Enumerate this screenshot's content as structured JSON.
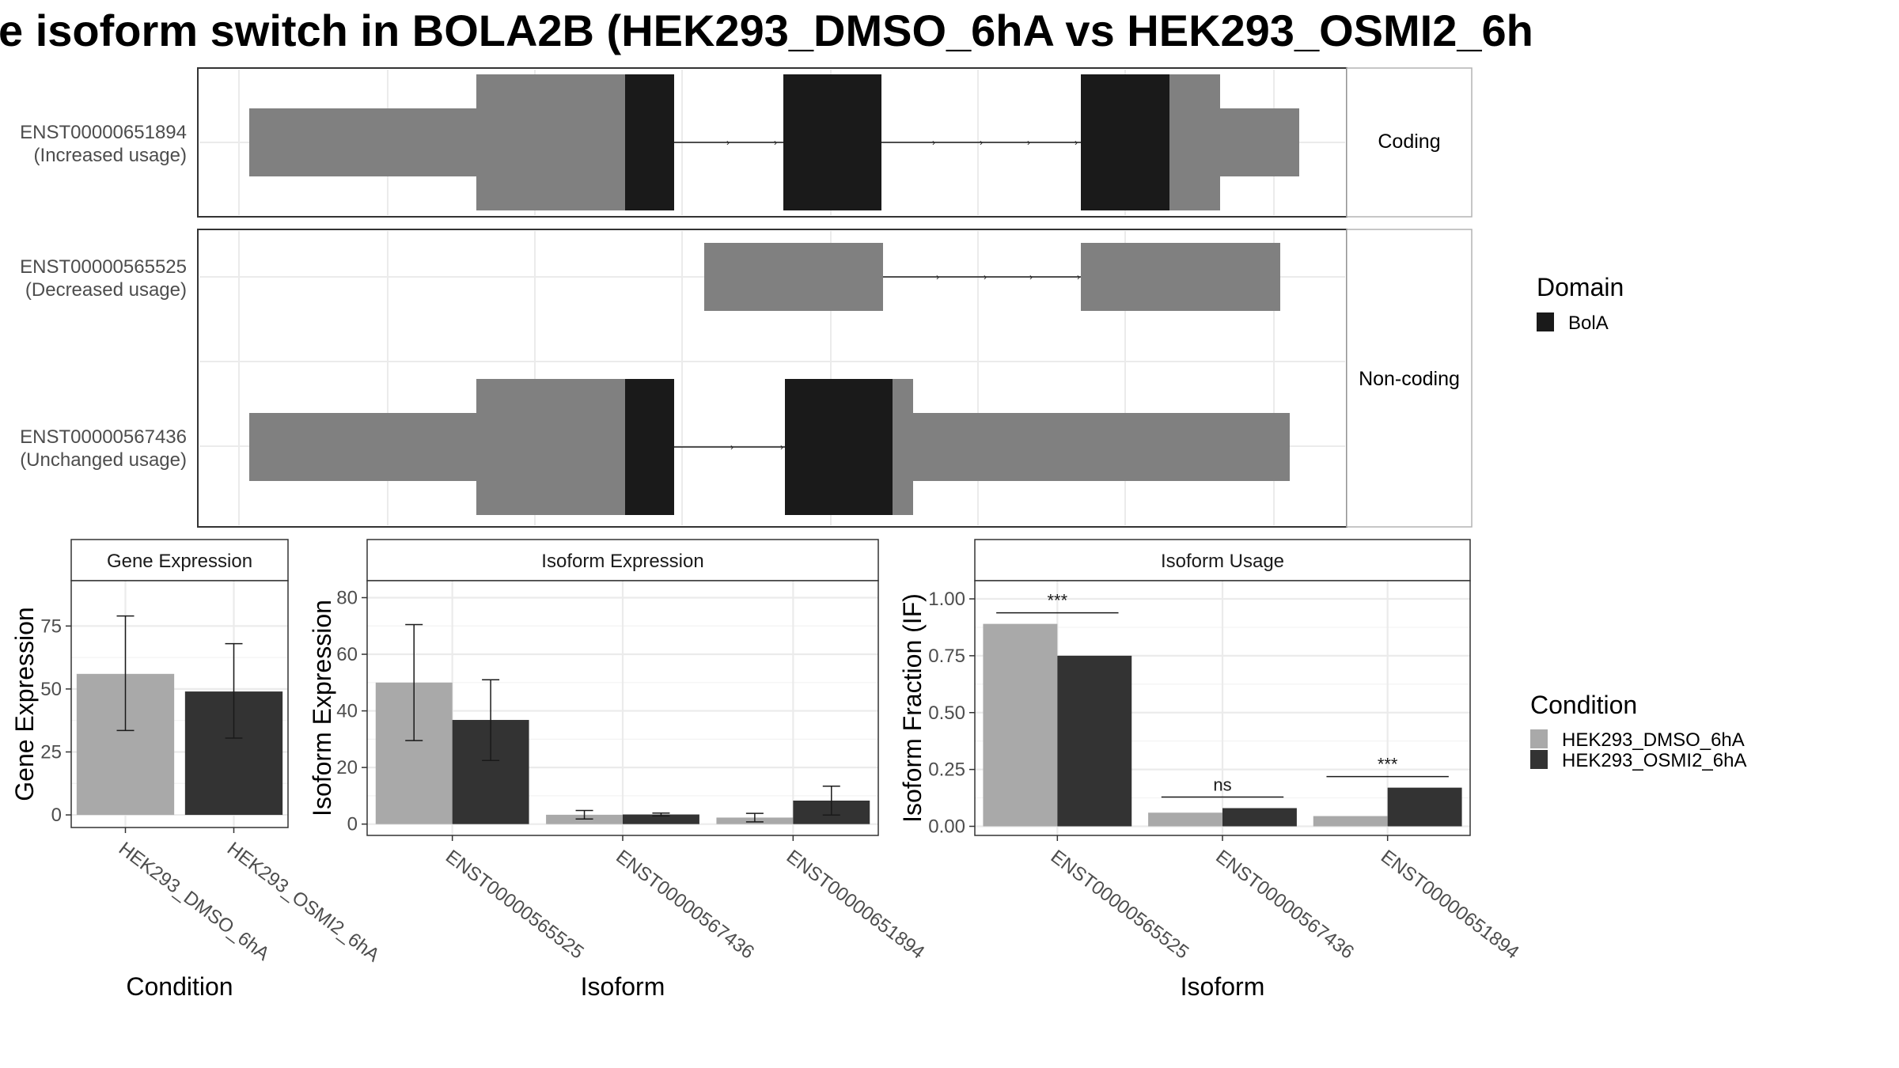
{
  "title": "e isoform switch in BOLA2B (HEK293_DMSO_6hA vs HEK293_OSMI2_6h",
  "colors": {
    "dmso": "#a9a9a9",
    "osmi": "#333333",
    "utr": "#808080",
    "domain": "#1a1a1a",
    "grid": "#ebebeb",
    "strip": "#ffffff"
  },
  "structure": {
    "facets": [
      "Coding",
      "Non-coding"
    ],
    "isoforms": [
      {
        "id": "ENST00000651894",
        "usage": "(Increased usage)",
        "facet": "Coding"
      },
      {
        "id": "ENST00000565525",
        "usage": "(Decreased usage)",
        "facet": "Non-coding"
      },
      {
        "id": "ENST00000567436",
        "usage": "(Unchanged usage)",
        "facet": "Non-coding"
      }
    ],
    "domain_legend": {
      "title": "Domain",
      "items": [
        "BolA"
      ]
    }
  },
  "condition_legend": {
    "title": "Condition",
    "items": [
      "HEK293_DMSO_6hA",
      "HEK293_OSMI2_6hA"
    ]
  },
  "chart_data": [
    {
      "type": "bar",
      "title": "Gene Expression",
      "xlabel": "Condition",
      "ylabel": "Gene Expression",
      "categories": [
        "HEK293_DMSO_6hA",
        "HEK293_OSMI2_6hA"
      ],
      "values": [
        56,
        49
      ],
      "err_low": [
        33.5,
        30.5
      ],
      "err_high": [
        79,
        68
      ],
      "ylim": [
        -5,
        93
      ],
      "yticks": [
        "0",
        "25",
        "50",
        "75"
      ],
      "grid": true
    },
    {
      "type": "bar",
      "title": "Isoform Expression",
      "xlabel": "Isoform",
      "ylabel": "Isoform Expression",
      "categories": [
        "ENST00000565525",
        "ENST00000567436",
        "ENST00000651894"
      ],
      "series": [
        {
          "name": "HEK293_DMSO_6hA",
          "values": [
            50,
            3.3,
            2.3
          ],
          "err_low": [
            29.5,
            1.8,
            0.8
          ],
          "err_high": [
            70.5,
            4.8,
            3.8
          ]
        },
        {
          "name": "HEK293_OSMI2_6hA",
          "values": [
            36.8,
            3.4,
            8.3
          ],
          "err_low": [
            22.5,
            2.9,
            3.2
          ],
          "err_high": [
            51,
            3.9,
            13.4
          ]
        }
      ],
      "ylim": [
        -4,
        86
      ],
      "yticks": [
        "0",
        "20",
        "40",
        "60",
        "80"
      ],
      "grid": true
    },
    {
      "type": "bar",
      "title": "Isoform Usage",
      "xlabel": "Isoform",
      "ylabel": "Isoform Fraction (IF)",
      "categories": [
        "ENST00000565525",
        "ENST00000567436",
        "ENST00000651894"
      ],
      "series": [
        {
          "name": "HEK293_DMSO_6hA",
          "values": [
            0.89,
            0.06,
            0.045
          ]
        },
        {
          "name": "HEK293_OSMI2_6hA",
          "values": [
            0.75,
            0.08,
            0.17
          ]
        }
      ],
      "significance": [
        "***",
        "ns",
        "***"
      ],
      "ylim": [
        -0.04,
        1.08
      ],
      "yticks": [
        "0.00",
        "0.25",
        "0.50",
        "0.75",
        "1.00"
      ],
      "grid": true
    }
  ]
}
